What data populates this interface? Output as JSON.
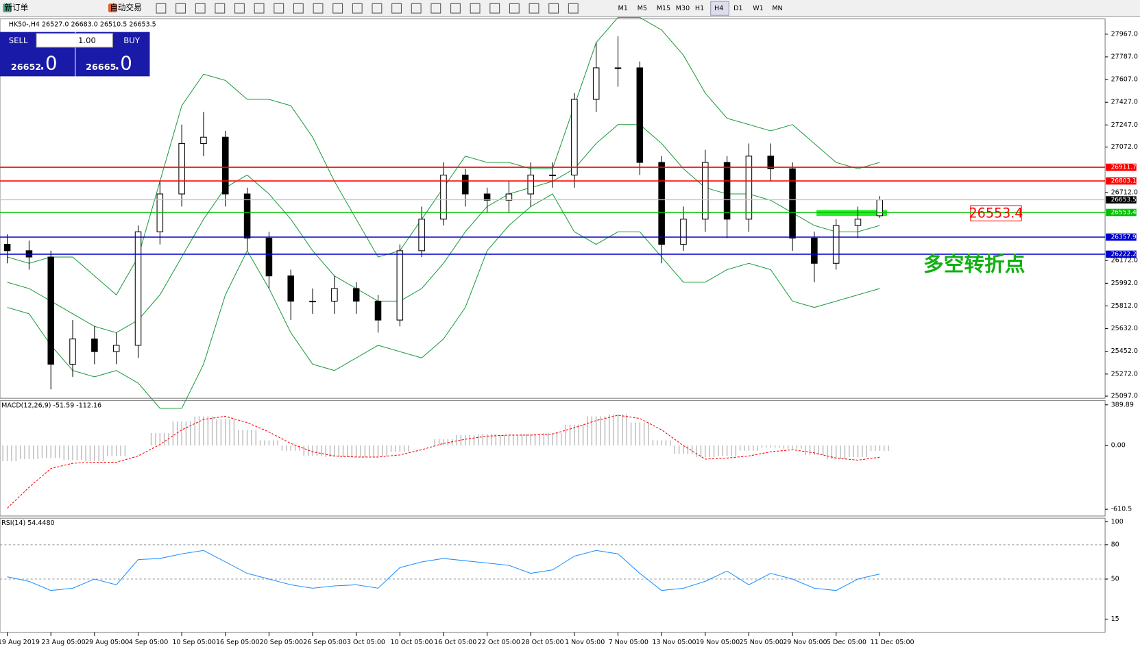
{
  "toolbar": {
    "items": [
      "新订单",
      "自动交易"
    ],
    "timeframes": [
      "M1",
      "M5",
      "M15",
      "M30",
      "H1",
      "H4",
      "D1",
      "W1",
      "MN"
    ]
  },
  "trade_panel": {
    "sell": "SELL",
    "lots": "1.00",
    "buy": "BUY",
    "sell_price": "26652",
    "sell_frac": ".0",
    "buy_price": "26665",
    "buy_frac": ".0"
  },
  "chart_data": [
    {
      "type": "candlestick",
      "title": "HK50-,H4  26527.0 26683.0 26510.5 26653.5",
      "categories": [
        "19 Aug 2019",
        null,
        "23 Aug 05:00",
        null,
        "29 Aug 05:00",
        null,
        "4 Sep 05:00",
        null,
        "10 Sep 05:00",
        null,
        "16 Sep 05:00",
        null,
        "20 Sep 05:00",
        null,
        "26 Sep 05:00",
        null,
        "3 Oct 05:00",
        null,
        "10 Oct 05:00",
        null,
        "16 Oct 05:00",
        null,
        "22 Oct 05:00",
        null,
        "28 Oct 05:00",
        null,
        "1 Nov 05:00",
        null,
        "7 Nov 05:00",
        null,
        "13 Nov 05:00",
        null,
        "19 Nov 05:00",
        null,
        "25 Nov 05:00",
        null,
        "29 Nov 05:00",
        null,
        "5 Dec 05:00",
        null,
        "11 Dec 05:00"
      ],
      "open": [
        26300,
        26250,
        26200,
        25350,
        25550,
        25450,
        25500,
        26400,
        26700,
        27100,
        27150,
        26700,
        26350,
        26050,
        25850,
        25850,
        25950,
        25850,
        25700,
        26250,
        26500,
        26850,
        26700,
        26650,
        26700,
        26850,
        26850,
        27450,
        27700,
        27700,
        26950,
        26300,
        26500,
        26950,
        26500,
        27000,
        26900,
        26350,
        26150,
        26450,
        26527
      ],
      "high": [
        26380,
        26330,
        26250,
        25700,
        25650,
        25600,
        26450,
        26800,
        27250,
        27350,
        27200,
        26750,
        26400,
        26100,
        25950,
        26050,
        26000,
        25900,
        26300,
        26600,
        26950,
        26900,
        26750,
        26800,
        26950,
        26950,
        27500,
        27900,
        27950,
        27750,
        27000,
        26600,
        27050,
        27000,
        27100,
        27100,
        26950,
        26400,
        26500,
        26600,
        26683
      ],
      "low": [
        26150,
        26100,
        25150,
        25250,
        25350,
        25350,
        25400,
        26300,
        26600,
        27000,
        26600,
        26250,
        25950,
        25700,
        25750,
        25750,
        25750,
        25600,
        25650,
        26200,
        26450,
        26600,
        26550,
        26550,
        26600,
        26750,
        26750,
        27350,
        27550,
        26850,
        26150,
        26250,
        26400,
        26350,
        26400,
        26800,
        26250,
        26000,
        26100,
        26350,
        26510.5
      ],
      "close": [
        26250,
        26200,
        25350,
        25550,
        25450,
        25500,
        26400,
        26700,
        27100,
        27150,
        26700,
        26350,
        26050,
        25850,
        25850,
        25950,
        25850,
        25700,
        26250,
        26500,
        26850,
        26700,
        26650,
        26700,
        26850,
        26850,
        27450,
        27700,
        27700,
        26950,
        26300,
        26500,
        26950,
        26500,
        27000,
        26900,
        26350,
        26150,
        26450,
        26500,
        26653.5
      ],
      "bands": [
        {
          "color": "#1f9d3f",
          "values": [
            26200,
            26150,
            26200,
            26200,
            26050,
            25900,
            26200,
            26800,
            27400,
            27650,
            27600,
            27450,
            27450,
            27400,
            27150,
            26800,
            26500,
            26200,
            26250,
            26500,
            26750,
            27000,
            26950,
            26950,
            26900,
            26900,
            27400,
            27900,
            28100,
            28100,
            28000,
            27800,
            27500,
            27300,
            27250,
            27200,
            27250,
            27100,
            26950,
            26900,
            26950
          ]
        },
        {
          "color": "#1f9d3f",
          "values": [
            26000,
            25950,
            25850,
            25750,
            25650,
            25600,
            25700,
            25900,
            26200,
            26500,
            26750,
            26850,
            26700,
            26500,
            26250,
            26050,
            25950,
            25850,
            25850,
            25950,
            26150,
            26400,
            26600,
            26700,
            26750,
            26800,
            26900,
            27100,
            27250,
            27250,
            27100,
            26900,
            26750,
            26700,
            26700,
            26650,
            26550,
            26450,
            26400,
            26400,
            26450
          ]
        },
        {
          "color": "#1f9d3f",
          "values": [
            25800,
            25750,
            25500,
            25300,
            25250,
            25300,
            25200,
            25000,
            25000,
            25350,
            25900,
            26250,
            25950,
            25600,
            25350,
            25300,
            25400,
            25500,
            25450,
            25400,
            25550,
            25800,
            26250,
            26450,
            26600,
            26700,
            26400,
            26300,
            26400,
            26400,
            26200,
            26000,
            26000,
            26100,
            26150,
            26100,
            25850,
            25800,
            25850,
            25900,
            25950
          ]
        }
      ],
      "levels": [
        {
          "value": 26911.7,
          "color": "#ff0000",
          "label_color": "#ff0000"
        },
        {
          "value": 26803.1,
          "color": "#ff0000",
          "label_color": "#ff0000"
        },
        {
          "value": 26653.5,
          "color": "#c0c0c0",
          "label_color": "#000000"
        },
        {
          "value": 26553.4,
          "color": "#00c000",
          "label_color": "#00c000"
        },
        {
          "value": 26357.9,
          "color": "#0000cc",
          "label_color": "#0000cc"
        },
        {
          "value": 26222.2,
          "color": "#0000cc",
          "label_color": "#0000cc"
        }
      ],
      "annotation": {
        "text": "多空转折点",
        "color": "#11b011"
      },
      "ylim": [
        25080,
        28088
      ],
      "yticks": [
        {
          "value": 27967,
          "label": "27967.0"
        },
        {
          "value": 27787,
          "label": "27787.0"
        },
        {
          "value": 27607,
          "label": "27607.0"
        },
        {
          "value": 27427,
          "label": "27427.0"
        },
        {
          "value": 27247,
          "label": "27247.0"
        },
        {
          "value": 27072,
          "label": "27072.0"
        },
        {
          "value": 26712,
          "label": "26712.0"
        },
        {
          "value": 26172,
          "label": "26172.0"
        },
        {
          "value": 25992,
          "label": "25992.0"
        },
        {
          "value": 25812,
          "label": "25812.0"
        },
        {
          "value": 25632,
          "label": "25632.0"
        },
        {
          "value": 25452,
          "label": "25452.0"
        },
        {
          "value": 25272,
          "label": "25272.0"
        },
        {
          "value": 25097,
          "label": "25097.0"
        }
      ]
    },
    {
      "type": "macd",
      "title": "MACD(12,26,9) -51.59 -112.16",
      "series": [
        {
          "name": "MACD",
          "color": "#c0c0c0",
          "values": [
            -150,
            -130,
            -120,
            -140,
            -150,
            -100,
            0,
            120,
            230,
            280,
            250,
            150,
            50,
            -50,
            -100,
            -110,
            -110,
            -100,
            -60,
            0,
            60,
            100,
            110,
            100,
            110,
            120,
            200,
            280,
            300,
            220,
            50,
            -80,
            -110,
            -100,
            -50,
            -20,
            -30,
            -90,
            -130,
            -110,
            -51.59
          ]
        },
        {
          "name": "Signal",
          "color": "#ff0000",
          "values": [
            -600,
            -400,
            -220,
            -170,
            -160,
            -160,
            -100,
            10,
            150,
            250,
            280,
            220,
            130,
            20,
            -60,
            -100,
            -110,
            -110,
            -90,
            -40,
            20,
            60,
            90,
            100,
            100,
            110,
            170,
            240,
            290,
            260,
            150,
            0,
            -130,
            -120,
            -100,
            -60,
            -40,
            -70,
            -120,
            -140,
            -112.16
          ]
        }
      ],
      "ylim": [
        -675,
        432
      ],
      "yticks": [
        389.89,
        {
          "value": 0,
          "label": "0.00"
        },
        -610.5
      ]
    },
    {
      "type": "line",
      "title": "RSI(14) 54.4480",
      "series": [
        {
          "name": "RSI",
          "color": "#1e90ff",
          "values": [
            52,
            48,
            40,
            42,
            50,
            45,
            67,
            68,
            72,
            75,
            65,
            55,
            50,
            45,
            42,
            44,
            45,
            42,
            60,
            65,
            68,
            66,
            64,
            62,
            55,
            58,
            70,
            75,
            72,
            55,
            40,
            42,
            48,
            57,
            45,
            55,
            50,
            42,
            40,
            50,
            54.448
          ]
        }
      ],
      "ylim": [
        3.5,
        103.2
      ],
      "yticks": [
        100,
        80,
        50,
        15
      ],
      "grid_at": [
        80,
        50
      ]
    }
  ]
}
